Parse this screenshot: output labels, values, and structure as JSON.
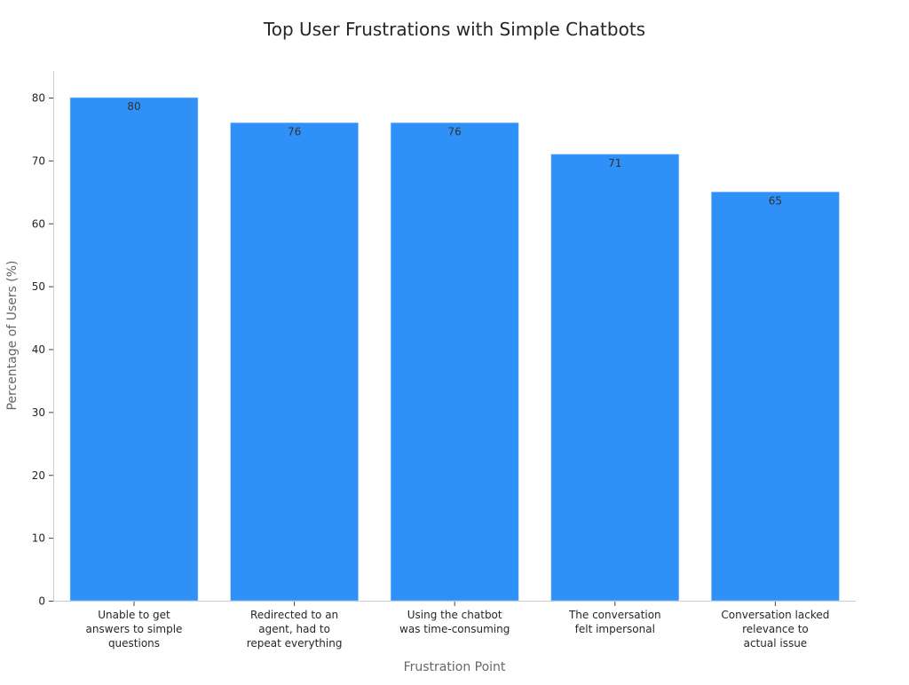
{
  "chart_data": {
    "type": "bar",
    "title": "Top User Frustrations with Simple Chatbots",
    "xlabel": "Frustration Point",
    "ylabel": "Percentage of Users (%)",
    "categories": [
      [
        "Unable to get",
        "answers to simple",
        "questions"
      ],
      [
        "Redirected to an",
        "agent, had to",
        "repeat everything"
      ],
      [
        "Using the chatbot",
        "was time-consuming"
      ],
      [
        "The conversation",
        "felt impersonal"
      ],
      [
        "Conversation lacked",
        "relevance to",
        "actual issue"
      ]
    ],
    "values": [
      80,
      76,
      76,
      71,
      65
    ],
    "data_labels": [
      "80",
      "76",
      "76",
      "71",
      "65"
    ],
    "ylim": [
      0,
      84
    ],
    "yticks": [
      0,
      10,
      20,
      30,
      40,
      50,
      60,
      70,
      80
    ],
    "grid": false,
    "bar_color": "#2f91f7"
  }
}
